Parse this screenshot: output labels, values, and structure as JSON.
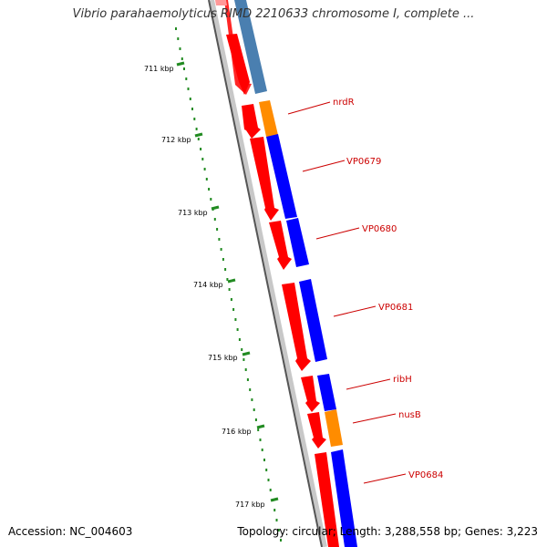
{
  "header": {
    "title": "Vibrio parahaemolyticus RIMD 2210633 chromosome I, complete ..."
  },
  "footer": {
    "accession": "Accession: NC_004603",
    "summary": "Topology: circular; Length: 3,288,558 bp; Genes: 3,223"
  },
  "colors": {
    "forward_gene": "#ff0000",
    "reverse_gene": "#0000ff",
    "reverse_gene_faded": "#4a7fb0",
    "orange_gene": "#ff8c00",
    "backbone": "#999999",
    "ruler": "#228b22",
    "label": "#cc0000"
  },
  "ruler_labels": [
    "711 kbp",
    "712 kbp",
    "713 kbp",
    "714 kbp",
    "715 kbp",
    "716 kbp",
    "717 kbp"
  ],
  "gene_labels": [
    "nrdR",
    "VP0679",
    "VP0680",
    "VP0681",
    "ribH",
    "nusB",
    "VP0684"
  ]
}
